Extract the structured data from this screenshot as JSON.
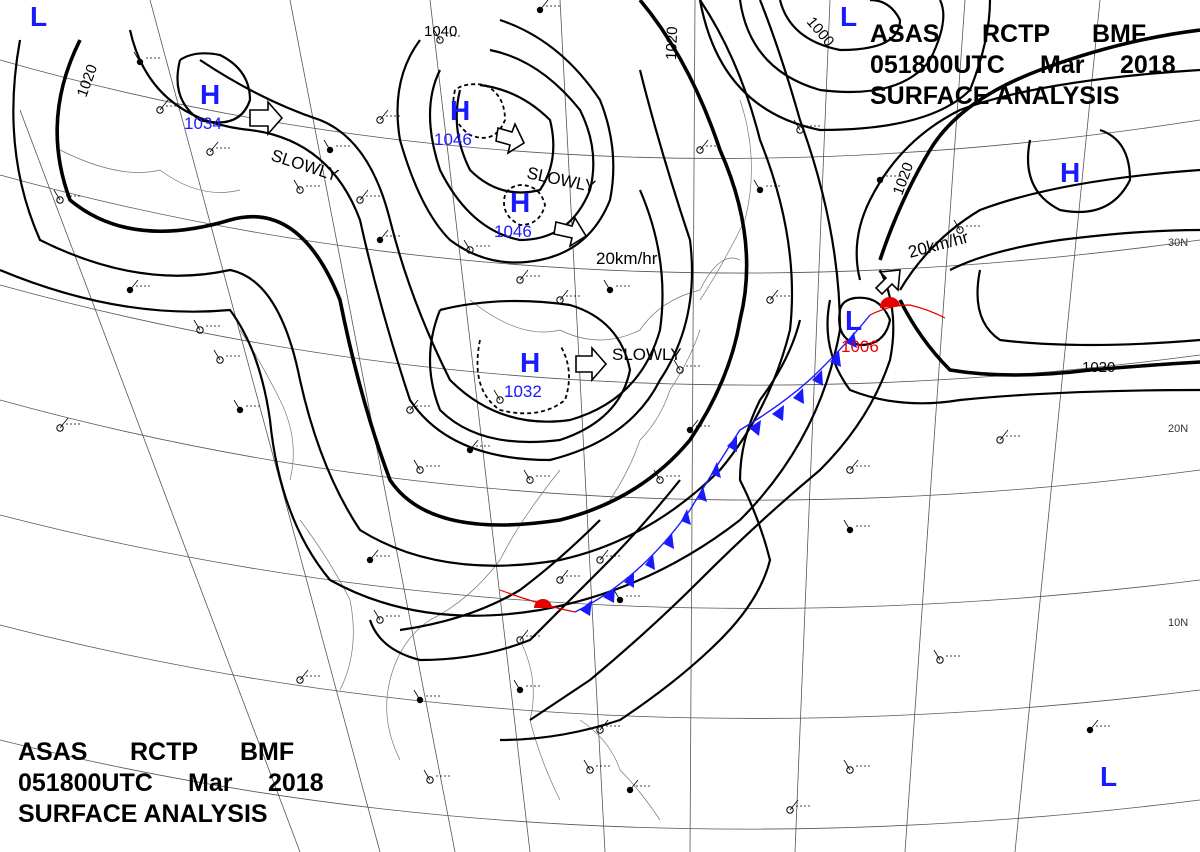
{
  "header": {
    "line1_parts": [
      "ASAS",
      "RCTP",
      "BMF"
    ],
    "line2_parts": [
      "051800UTC",
      "Mar",
      "2018"
    ],
    "line3": "SURFACE ANALYSIS"
  },
  "lat_labels": {
    "30N": "30N",
    "20N": "20N",
    "10N": "10N"
  },
  "isobar_labels": {
    "i1020a": "1020",
    "i1040": "1040",
    "i1020b": "1020",
    "i1000": "1000",
    "i1020c": "1020",
    "i1020d": "1020"
  },
  "highs": [
    {
      "symbol": "H",
      "pressure": "1034"
    },
    {
      "symbol": "H",
      "pressure": "1046"
    },
    {
      "symbol": "H",
      "pressure": "1046"
    },
    {
      "symbol": "H",
      "pressure": "1032"
    },
    {
      "symbol": "H",
      "pressure": ""
    }
  ],
  "lows": [
    {
      "symbol": "L",
      "pressure": "1006"
    },
    {
      "symbol": "L",
      "pressure": ""
    },
    {
      "symbol": "L",
      "pressure": ""
    },
    {
      "symbol": "L",
      "pressure": ""
    }
  ],
  "movements": {
    "m1": "SLOWLY",
    "m2": "SLOWLY",
    "m3": "20km/hr",
    "m4": "SLOWLY",
    "m5": "20km/hr"
  },
  "colors": {
    "high": "#1a1aff",
    "low": "#e60000",
    "front_cold": "#1a1aff",
    "front_warm": "#e60000"
  }
}
